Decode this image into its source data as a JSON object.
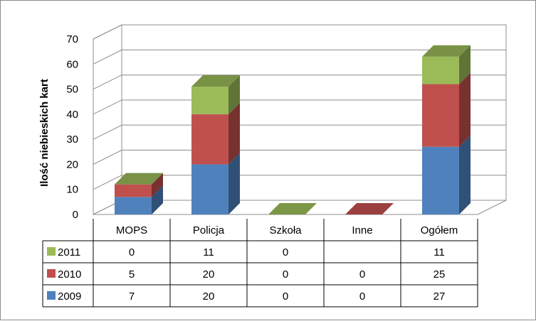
{
  "chart_data": {
    "type": "bar",
    "stacked": true,
    "three_d": true,
    "categories": [
      "MOPS",
      "Policja",
      "Szkoła",
      "Inne",
      "Ogółem"
    ],
    "series": [
      {
        "name": "2009",
        "color": "#4f81bd",
        "values": [
          7,
          20,
          0,
          0,
          27
        ],
        "labels": [
          "7",
          "20",
          "0",
          "0",
          "27"
        ]
      },
      {
        "name": "2010",
        "color": "#c0504d",
        "values": [
          5,
          20,
          0,
          0,
          25
        ],
        "labels": [
          "5",
          "20",
          "0",
          "0",
          "25"
        ]
      },
      {
        "name": "2011",
        "color": "#9bbb59",
        "values": [
          0,
          11,
          0,
          null,
          11
        ],
        "labels": [
          "0",
          "11",
          "0",
          "",
          "11"
        ]
      }
    ],
    "ylabel": "Ilość niebieskich kart",
    "xlabel": "",
    "title": "",
    "ylim": [
      0,
      70
    ],
    "yticks": [
      "0",
      "10",
      "20",
      "30",
      "40",
      "50",
      "60",
      "70"
    ],
    "grid": true,
    "legend": "data-table-left",
    "table_row_order": [
      "2011",
      "2010",
      "2009"
    ]
  }
}
